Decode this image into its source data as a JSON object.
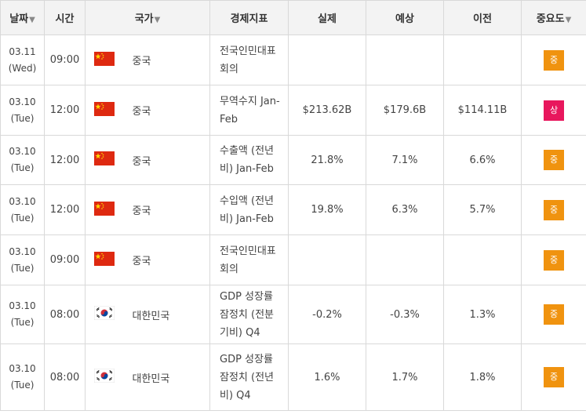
{
  "header": {
    "date": "날짜",
    "time": "시간",
    "country": "국가",
    "indicator": "경제지표",
    "actual": "실제",
    "forecast": "예상",
    "previous": "이전",
    "importance": "중요도"
  },
  "icons": {
    "sort": "sort-down-icon",
    "cn_flag": "china-flag-icon",
    "kr_flag": "south-korea-flag-icon"
  },
  "colors": {
    "medium": "#f0930f",
    "high": "#e8175d"
  },
  "rows": [
    {
      "date": "03.11",
      "day": "(Wed)",
      "time": "09:00",
      "flag": "cn",
      "country": "중국",
      "indicator": "전국인민대표회의",
      "actual": "",
      "forecast": "",
      "previous": "",
      "importance": "중",
      "level": "medium"
    },
    {
      "date": "03.10",
      "day": "(Tue)",
      "time": "12:00",
      "flag": "cn",
      "country": "중국",
      "indicator": "무역수지 Jan-Feb",
      "actual": "$213.62B",
      "forecast": "$179.6B",
      "previous": "$114.11B",
      "importance": "상",
      "level": "high"
    },
    {
      "date": "03.10",
      "day": "(Tue)",
      "time": "12:00",
      "flag": "cn",
      "country": "중국",
      "indicator": "수출액 (전년비) Jan-Feb",
      "actual": "21.8%",
      "forecast": "7.1%",
      "previous": "6.6%",
      "importance": "중",
      "level": "medium"
    },
    {
      "date": "03.10",
      "day": "(Tue)",
      "time": "12:00",
      "flag": "cn",
      "country": "중국",
      "indicator": "수입액 (전년비) Jan-Feb",
      "actual": "19.8%",
      "forecast": "6.3%",
      "previous": "5.7%",
      "importance": "중",
      "level": "medium"
    },
    {
      "date": "03.10",
      "day": "(Tue)",
      "time": "09:00",
      "flag": "cn",
      "country": "중국",
      "indicator": "전국인민대표회의",
      "actual": "",
      "forecast": "",
      "previous": "",
      "importance": "중",
      "level": "medium"
    },
    {
      "date": "03.10",
      "day": "(Tue)",
      "time": "08:00",
      "flag": "kr",
      "country": "대한민국",
      "indicator": "GDP 성장률 잠정치 (전분기비) Q4",
      "actual": "-0.2%",
      "forecast": "-0.3%",
      "previous": "1.3%",
      "importance": "중",
      "level": "medium"
    },
    {
      "date": "03.10",
      "day": "(Tue)",
      "time": "08:00",
      "flag": "kr",
      "country": "대한민국",
      "indicator": "GDP 성장률 잠정치 (전년비) Q4",
      "actual": "1.6%",
      "forecast": "1.7%",
      "previous": "1.8%",
      "importance": "중",
      "level": "medium"
    }
  ]
}
